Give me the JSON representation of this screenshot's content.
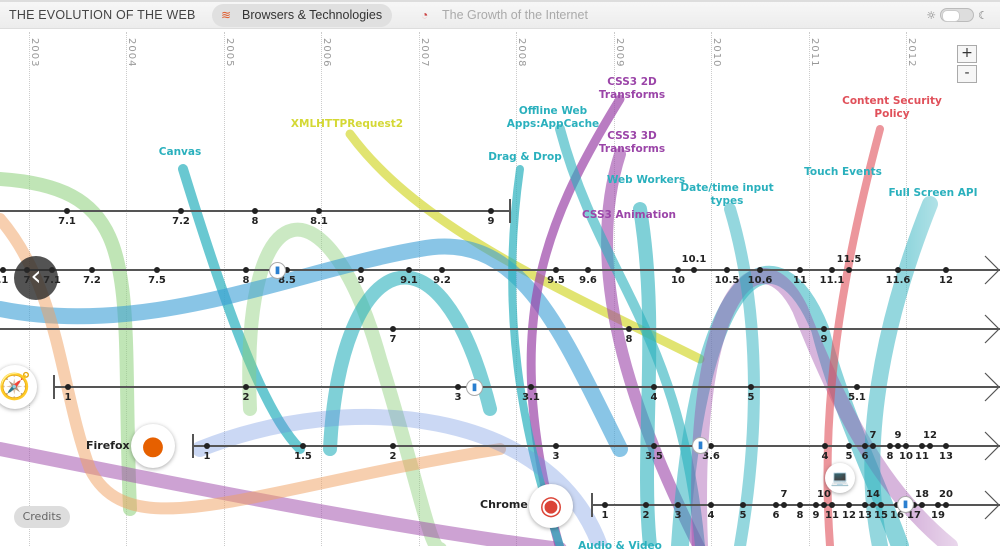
{
  "header": {
    "title": "THE EVOLUTION OF THE WEB",
    "tabs": [
      {
        "label": "Browsers & Technologies",
        "icon": "rainbow-icon",
        "active": true
      },
      {
        "label": "The Growth of the Internet",
        "icon": "globe-icon",
        "active": false
      }
    ],
    "theme_toggle": {
      "left_icon": "sun-icon",
      "right_icon": "moon-icon"
    }
  },
  "years": [
    "2003",
    "2004",
    "2005",
    "2006",
    "2007",
    "2008",
    "2009",
    "2010",
    "2011",
    "2012"
  ],
  "zoom": {
    "in": "+",
    "out": "-"
  },
  "credits": "Credits",
  "browsers": [
    {
      "name": "",
      "ticks": [
        "7.1",
        "7.2",
        "8",
        "8.1",
        "9"
      ]
    },
    {
      "name": "",
      "ticks": [
        ".1",
        "7",
        "7.1",
        "7.2",
        "7.5",
        "8",
        "8.5",
        "9",
        "9.1",
        "9.2",
        "9.5",
        "9.6",
        "10",
        "10.1",
        "10.5",
        "10.6",
        "11",
        "11.1",
        "11.5",
        "11.6",
        "12"
      ]
    },
    {
      "name": "",
      "ticks": [
        "7",
        "8",
        "9"
      ]
    },
    {
      "name": "",
      "ticks": [
        "1",
        "2",
        "3",
        "3.1",
        "4",
        "5",
        "5.1"
      ]
    },
    {
      "name": "Firefox",
      "ticks": [
        "1",
        "1.5",
        "2",
        "3",
        "3.5",
        "3.6",
        "4",
        "5",
        "6",
        "7",
        "8",
        "9",
        "10",
        "11",
        "12",
        "13"
      ]
    },
    {
      "name": "Chrome",
      "ticks": [
        "1",
        "2",
        "3",
        "4",
        "5",
        "6",
        "7",
        "8",
        "9",
        "10",
        "11",
        "12",
        "13",
        "14",
        "15",
        "16",
        "17",
        "18",
        "19",
        "20"
      ]
    }
  ],
  "features": [
    {
      "label": "Canvas",
      "color": "#2ab0bd"
    },
    {
      "label": "XMLHTTPRequest2",
      "color": "#d4d835"
    },
    {
      "label": "Drag & Drop",
      "color": "#2ab0bd"
    },
    {
      "label": "Offline Web Apps:AppCache",
      "color": "#2ab0bd"
    },
    {
      "label": "CSS3 2D Transforms",
      "color": "#9b45a8"
    },
    {
      "label": "CSS3 3D Transforms",
      "color": "#9b45a8"
    },
    {
      "label": "Web Workers",
      "color": "#2ab0bd"
    },
    {
      "label": "CSS3 Animation",
      "color": "#9b45a8"
    },
    {
      "label": "Date/time input types",
      "color": "#2ab0bd"
    },
    {
      "label": "Touch Events",
      "color": "#2ab0bd"
    },
    {
      "label": "Content Security Policy",
      "color": "#e0505a"
    },
    {
      "label": "Full Screen API",
      "color": "#2ab0bd"
    },
    {
      "label": "Audio & Video",
      "color": "#2ab0bd"
    }
  ]
}
